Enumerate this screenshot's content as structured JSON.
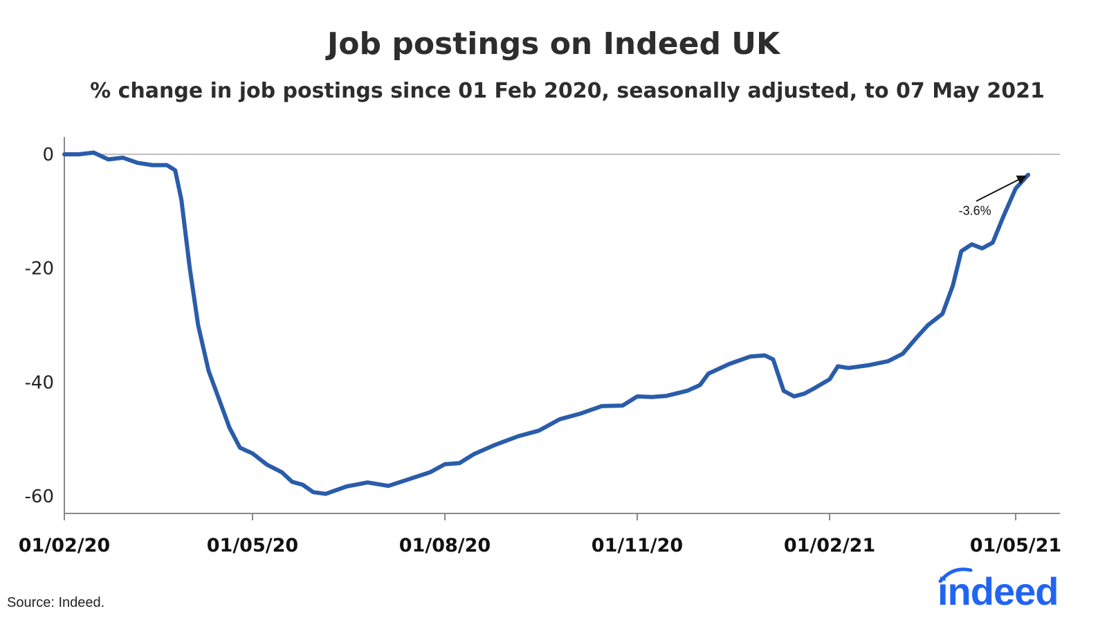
{
  "header": {
    "title": "Job postings on Indeed UK",
    "subtitle": "% change in job postings since 01 Feb 2020, seasonally adjusted, to 07 May 2021"
  },
  "footer": {
    "source": "Source: Indeed.",
    "logo_text": "indeed"
  },
  "colors": {
    "line": "#2a5caa",
    "axis": "#888888",
    "logo": "#2164f3"
  },
  "chart_data": {
    "type": "line",
    "title": "Job postings on Indeed UK",
    "subtitle": "% change in job postings since 01 Feb 2020, seasonally adjusted, to 07 May 2021",
    "xlabel": "",
    "ylabel": "",
    "ylim": [
      -62,
      3
    ],
    "yticks": [
      0,
      -20,
      -40,
      -60
    ],
    "ytick_labels": [
      "0",
      "-20",
      "-40",
      "-60"
    ],
    "xticks": [
      "2020-02-01",
      "2020-05-01",
      "2020-08-01",
      "2020-11-01",
      "2021-02-01",
      "2021-05-01"
    ],
    "xtick_labels": [
      "01/02/20",
      "01/05/20",
      "01/08/20",
      "01/11/20",
      "01/02/21",
      "01/05/21"
    ],
    "xlim": [
      "2020-02-01",
      "2021-05-07"
    ],
    "grid": false,
    "legend": "none",
    "annotation": {
      "text": "-3.6%",
      "date": "2021-05-07",
      "value": -3.6
    },
    "series": [
      {
        "points": [
          [
            "2020-02-01",
            0
          ],
          [
            "2020-02-08",
            0
          ],
          [
            "2020-02-15",
            0.3
          ],
          [
            "2020-02-22",
            -0.9
          ],
          [
            "2020-02-29",
            -0.6
          ],
          [
            "2020-03-07",
            -1.5
          ],
          [
            "2020-03-14",
            -1.9
          ],
          [
            "2020-03-21",
            -1.9
          ],
          [
            "2020-03-25",
            -2.8
          ],
          [
            "2020-03-28",
            -8
          ],
          [
            "2020-04-01",
            -20
          ],
          [
            "2020-04-05",
            -30
          ],
          [
            "2020-04-10",
            -38
          ],
          [
            "2020-04-15",
            -43
          ],
          [
            "2020-04-20",
            -48
          ],
          [
            "2020-04-25",
            -51.5
          ],
          [
            "2020-05-01",
            -52.5
          ],
          [
            "2020-05-08",
            -54.5
          ],
          [
            "2020-05-15",
            -55.8
          ],
          [
            "2020-05-20",
            -57.5
          ],
          [
            "2020-05-25",
            -58
          ],
          [
            "2020-05-30",
            -59.3
          ],
          [
            "2020-06-05",
            -59.6
          ],
          [
            "2020-06-15",
            -58.3
          ],
          [
            "2020-06-25",
            -57.6
          ],
          [
            "2020-07-05",
            -58.2
          ],
          [
            "2020-07-15",
            -57
          ],
          [
            "2020-07-25",
            -55.8
          ],
          [
            "2020-08-01",
            -54.4
          ],
          [
            "2020-08-08",
            -54.2
          ],
          [
            "2020-08-15",
            -52.6
          ],
          [
            "2020-08-25",
            -51
          ],
          [
            "2020-09-05",
            -49.5
          ],
          [
            "2020-09-15",
            -48.5
          ],
          [
            "2020-09-25",
            -46.5
          ],
          [
            "2020-10-05",
            -45.5
          ],
          [
            "2020-10-15",
            -44.2
          ],
          [
            "2020-10-25",
            -44.1
          ],
          [
            "2020-11-01",
            -42.5
          ],
          [
            "2020-11-08",
            -42.6
          ],
          [
            "2020-11-15",
            -42.4
          ],
          [
            "2020-11-25",
            -41.5
          ],
          [
            "2020-12-01",
            -40.5
          ],
          [
            "2020-12-05",
            -38.5
          ],
          [
            "2020-12-15",
            -36.8
          ],
          [
            "2020-12-25",
            -35.5
          ],
          [
            "2021-01-01",
            -35.3
          ],
          [
            "2021-01-05",
            -36
          ],
          [
            "2021-01-10",
            -41.5
          ],
          [
            "2021-01-15",
            -42.5
          ],
          [
            "2021-01-20",
            -42
          ],
          [
            "2021-01-25",
            -41
          ],
          [
            "2021-02-01",
            -39.5
          ],
          [
            "2021-02-05",
            -37.2
          ],
          [
            "2021-02-10",
            -37.5
          ],
          [
            "2021-02-20",
            -37
          ],
          [
            "2021-03-01",
            -36.3
          ],
          [
            "2021-03-08",
            -35
          ],
          [
            "2021-03-15",
            -32
          ],
          [
            "2021-03-20",
            -30
          ],
          [
            "2021-03-27",
            -28
          ],
          [
            "2021-04-01",
            -23
          ],
          [
            "2021-04-05",
            -17
          ],
          [
            "2021-04-10",
            -15.8
          ],
          [
            "2021-04-15",
            -16.5
          ],
          [
            "2021-04-20",
            -15.5
          ],
          [
            "2021-04-25",
            -11
          ],
          [
            "2021-05-01",
            -6
          ],
          [
            "2021-05-07",
            -3.6
          ]
        ]
      }
    ]
  }
}
